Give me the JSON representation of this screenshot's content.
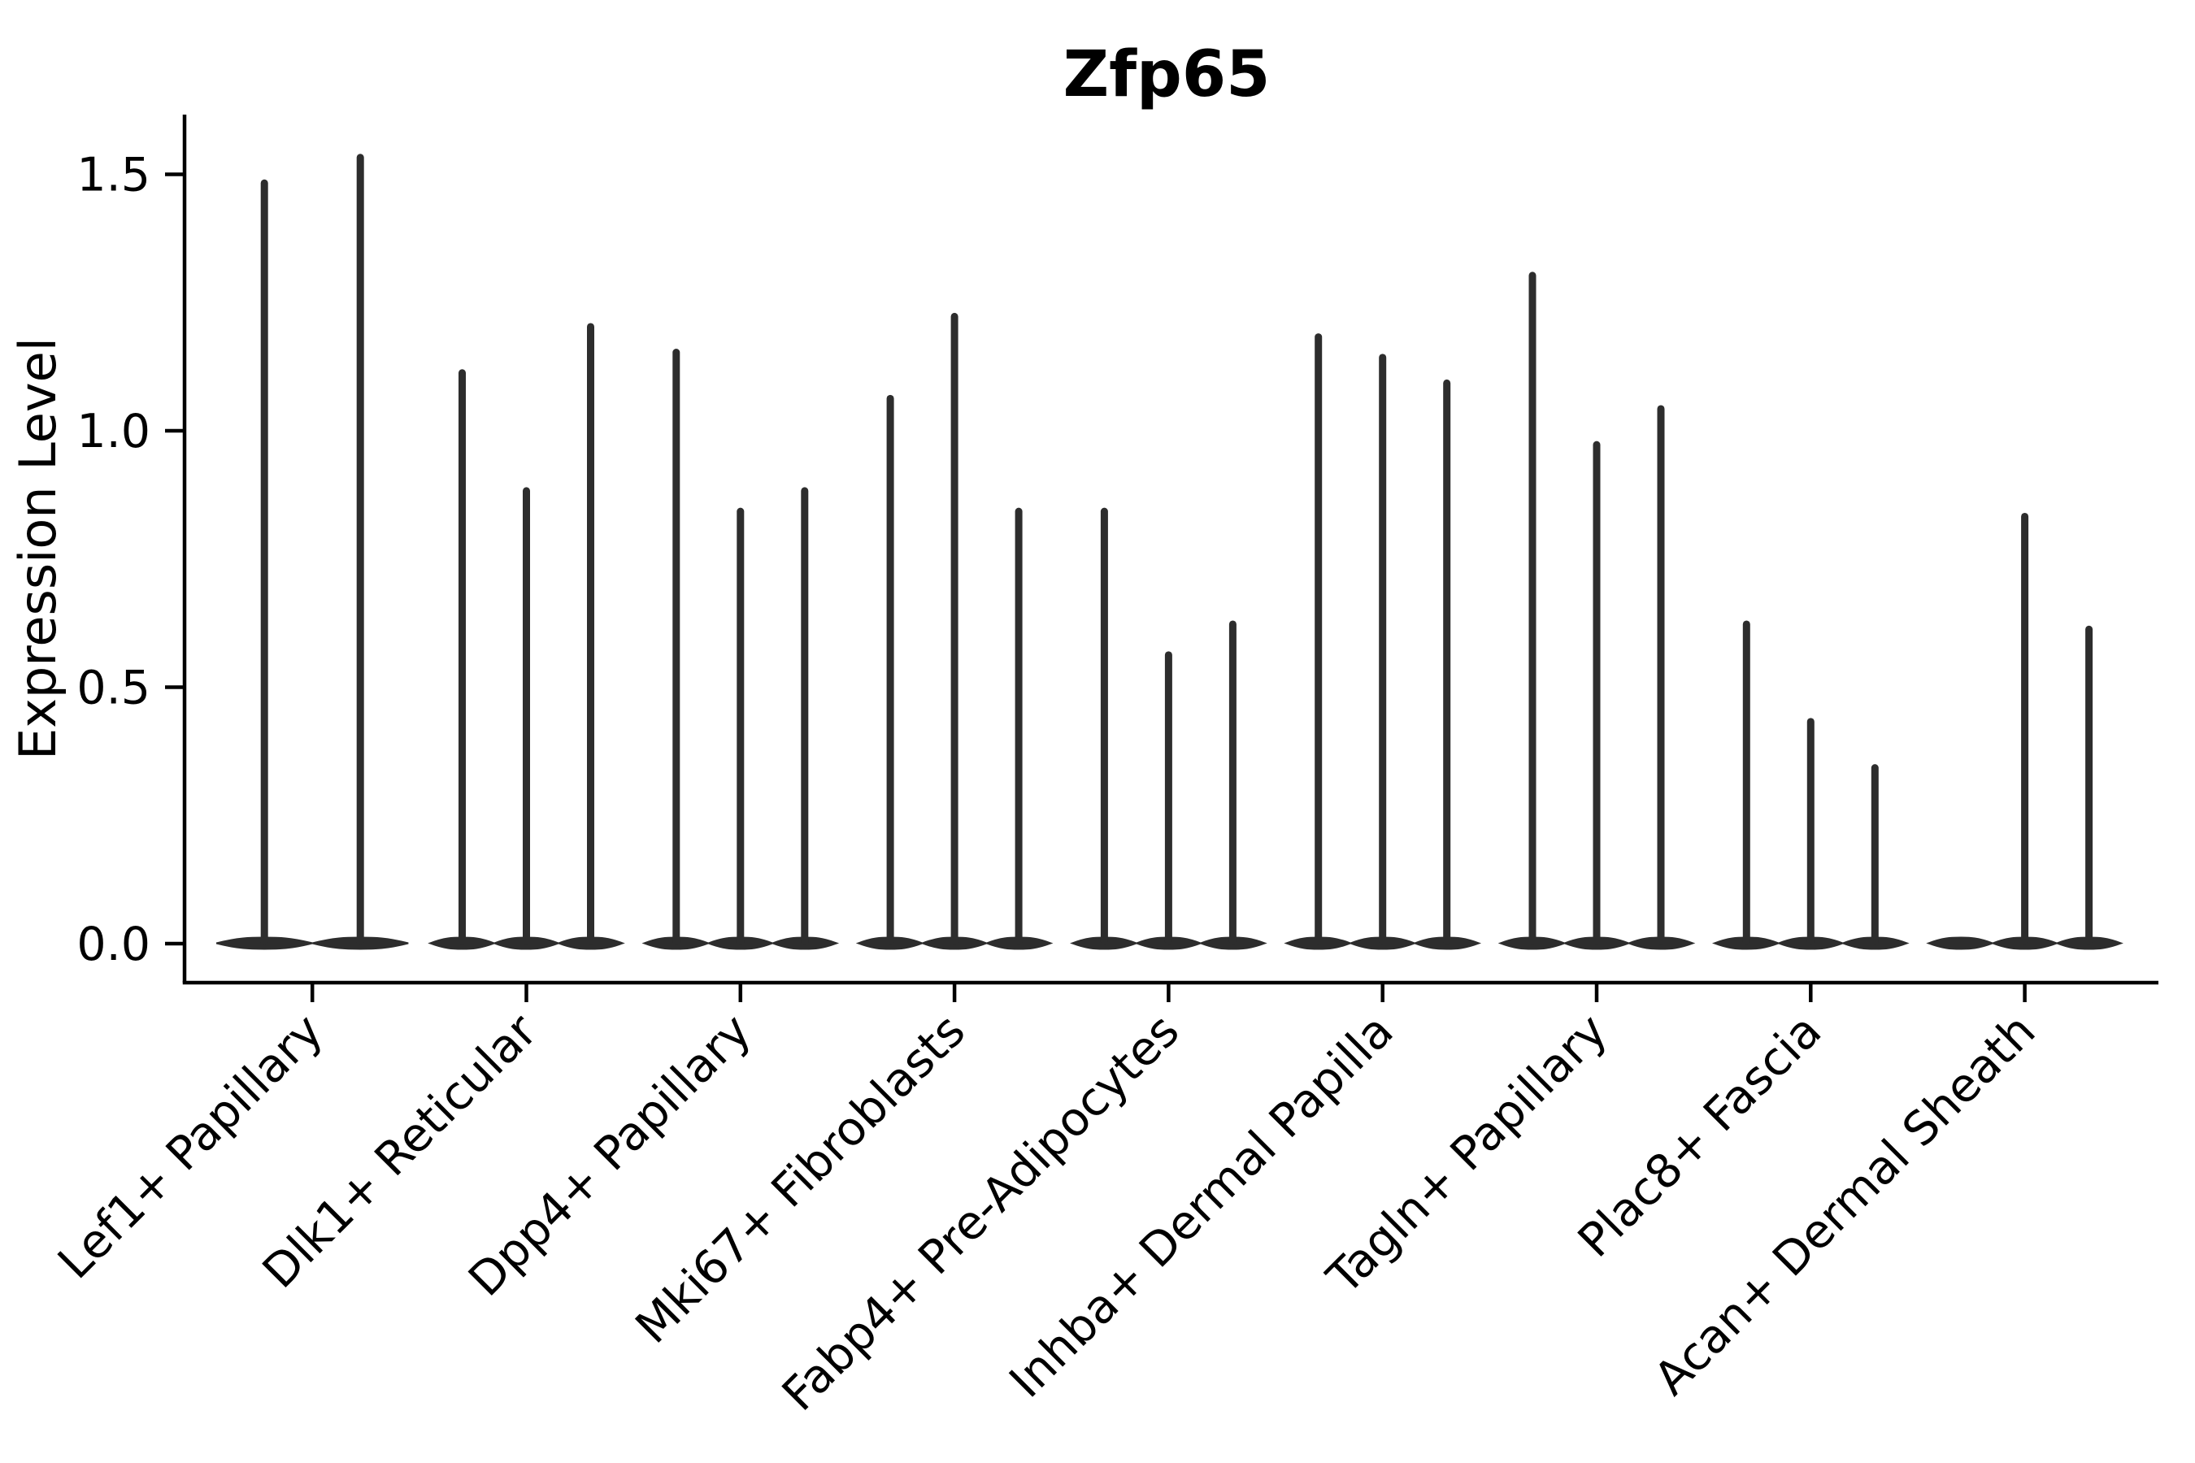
{
  "title": "Zfp65",
  "ylabel": "Expression Level",
  "chart_data": {
    "type": "violin",
    "title": "Zfp65",
    "xlabel": "",
    "ylabel": "Expression Level",
    "yticks": [
      0.0,
      0.5,
      1.0,
      1.5
    ],
    "ylim": [
      -0.08,
      1.62
    ],
    "grid": false,
    "legend": "none",
    "xtick_rotation": 45,
    "description": "Single-cell expression violin plot; each cell type shows 2-3 extremely thin violins: a flat base at 0 expression with a narrow spike rising to the listed maximum expression value (0 = completely flat violin, no spike).",
    "categories": [
      "Lef1+ Papillary",
      "Dlk1+ Reticular",
      "Dpp4+ Papillary",
      "Mki67+ Fibroblasts",
      "Fabp4+ Pre-Adipocytes",
      "Inhba+ Dermal Papilla",
      "Tagln+ Papillary",
      "Plac8+ Fascia",
      "Acan+ Dermal Sheath"
    ],
    "groups": [
      {
        "label": "Lef1+ Papillary",
        "violin_max_values": [
          1.49,
          1.54
        ]
      },
      {
        "label": "Dlk1+ Reticular",
        "violin_max_values": [
          1.12,
          0.89,
          1.21
        ]
      },
      {
        "label": "Dpp4+ Papillary",
        "violin_max_values": [
          1.16,
          0.85,
          0.89
        ]
      },
      {
        "label": "Mki67+ Fibroblasts",
        "violin_max_values": [
          1.07,
          1.23,
          0.85
        ]
      },
      {
        "label": "Fabp4+ Pre-Adipocytes",
        "violin_max_values": [
          0.85,
          0.57,
          0.63
        ]
      },
      {
        "label": "Inhba+ Dermal Papilla",
        "violin_max_values": [
          1.19,
          1.15,
          1.1
        ]
      },
      {
        "label": "Tagln+ Papillary",
        "violin_max_values": [
          1.31,
          0.98,
          1.05
        ]
      },
      {
        "label": "Plac8+ Fascia",
        "violin_max_values": [
          0.63,
          0.44,
          0.35
        ]
      },
      {
        "label": "Acan+ Dermal Sheath",
        "violin_max_values": [
          0.0,
          0.84,
          0.62
        ]
      }
    ],
    "colors": {
      "violin": "#2d2d2d",
      "axis": "#000000",
      "text": "#000000",
      "background": "#ffffff"
    }
  }
}
